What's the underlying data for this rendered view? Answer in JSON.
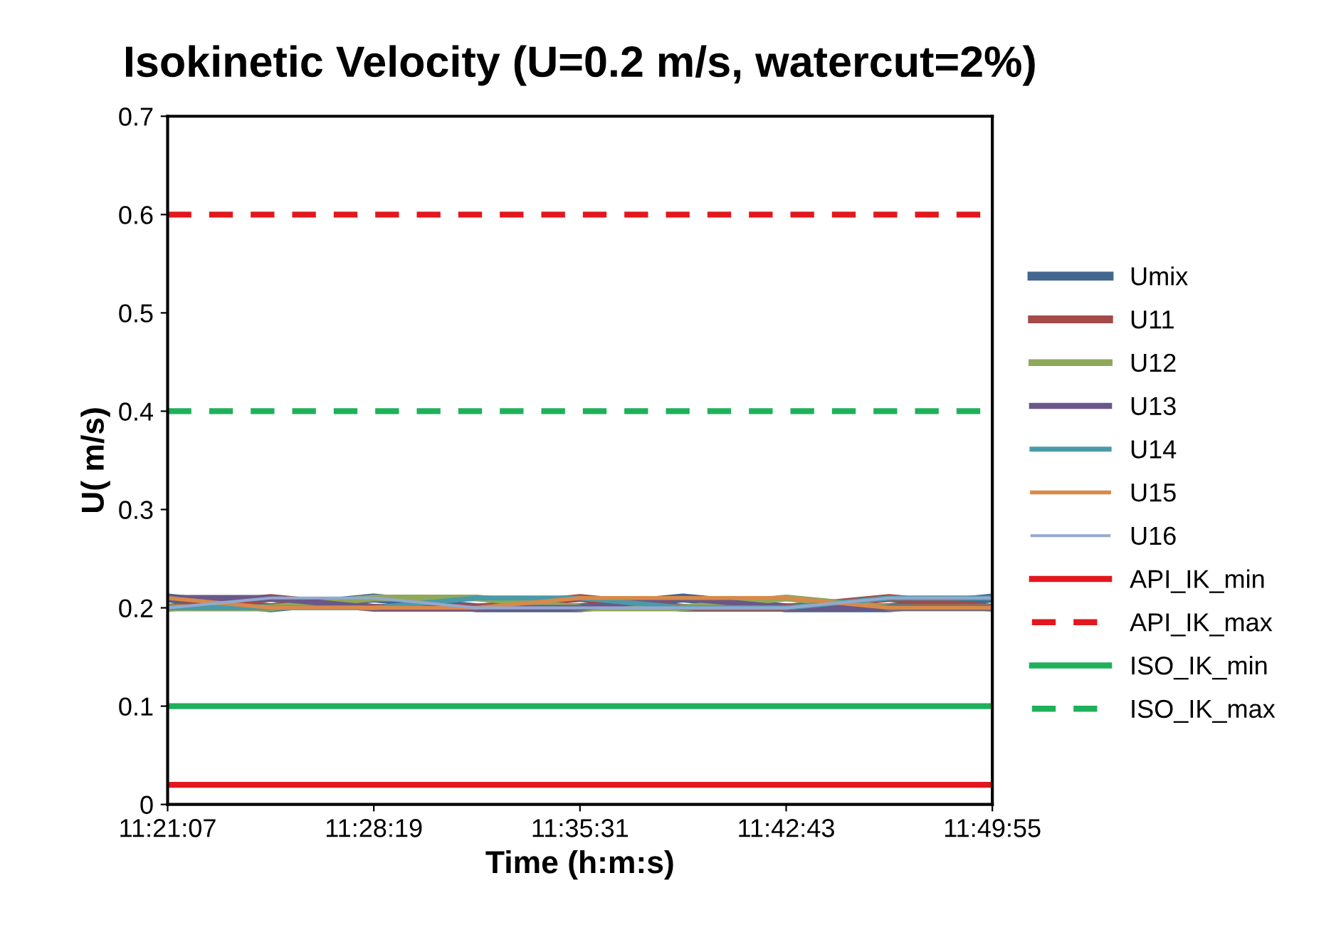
{
  "chart_data": {
    "type": "line",
    "title": "Isokinetic Velocity (U=0.2 m/s, watercut=2%)",
    "xlabel": "Time (h:m:s)",
    "ylabel": "U( m/s)",
    "x": [
      11.35194,
      11.41194,
      11.47194,
      11.53194,
      11.59194,
      11.65194,
      11.71194,
      11.77194,
      11.83194
    ],
    "xlim": [
      11.35194,
      11.83194
    ],
    "xticks": [
      {
        "value": 11.35194,
        "label": "11:21:07"
      },
      {
        "value": 11.47194,
        "label": "11:28:19"
      },
      {
        "value": 11.59194,
        "label": "11:35:31"
      },
      {
        "value": 11.71194,
        "label": "11:42:43"
      },
      {
        "value": 11.83194,
        "label": "11:49:55"
      }
    ],
    "ylim": [
      0,
      0.7
    ],
    "yticks": [
      0,
      0.1,
      0.2,
      0.3,
      0.4,
      0.5,
      0.6,
      0.7
    ],
    "grid": false,
    "legend": "right",
    "marker": "none",
    "series": [
      {
        "name": "Umix",
        "color": "#44678f",
        "values": [
          0.21,
          0.2,
          0.21,
          0.2,
          0.2,
          0.21,
          0.2,
          0.2,
          0.21
        ]
      },
      {
        "name": "U11",
        "color": "#a44a48",
        "values": [
          0.2,
          0.21,
          0.2,
          0.2,
          0.21,
          0.2,
          0.2,
          0.21,
          0.2
        ]
      },
      {
        "name": "U12",
        "color": "#8fa85a",
        "values": [
          0.2,
          0.2,
          0.21,
          0.21,
          0.2,
          0.2,
          0.21,
          0.2,
          0.2
        ]
      },
      {
        "name": "U13",
        "color": "#6a5889",
        "values": [
          0.21,
          0.21,
          0.2,
          0.2,
          0.2,
          0.21,
          0.2,
          0.2,
          0.2
        ]
      },
      {
        "name": "U14",
        "color": "#4a9aa8",
        "values": [
          0.2,
          0.2,
          0.2,
          0.21,
          0.21,
          0.2,
          0.2,
          0.21,
          0.21
        ]
      },
      {
        "name": "U15",
        "color": "#d9894a",
        "values": [
          0.21,
          0.2,
          0.2,
          0.2,
          0.21,
          0.21,
          0.21,
          0.2,
          0.2
        ]
      },
      {
        "name": "U16",
        "color": "#93a9cf",
        "values": [
          0.2,
          0.21,
          0.21,
          0.2,
          0.2,
          0.2,
          0.2,
          0.21,
          0.21
        ]
      },
      {
        "name": "API_IK_min",
        "color": "#e3171e",
        "line_style": "solid",
        "values": [
          0.02,
          0.02,
          0.02,
          0.02,
          0.02,
          0.02,
          0.02,
          0.02,
          0.02
        ]
      },
      {
        "name": "API_IK_max",
        "color": "#e3171e",
        "line_style": "dashed",
        "values": [
          0.6,
          0.6,
          0.6,
          0.6,
          0.6,
          0.6,
          0.6,
          0.6,
          0.6
        ]
      },
      {
        "name": "ISO_IK_min",
        "color": "#1fb05a",
        "line_style": "solid",
        "values": [
          0.1,
          0.1,
          0.1,
          0.1,
          0.1,
          0.1,
          0.1,
          0.1,
          0.1
        ]
      },
      {
        "name": "ISO_IK_max",
        "color": "#1fb05a",
        "line_style": "dashed",
        "values": [
          0.4,
          0.4,
          0.4,
          0.4,
          0.4,
          0.4,
          0.4,
          0.4,
          0.4
        ]
      }
    ]
  }
}
